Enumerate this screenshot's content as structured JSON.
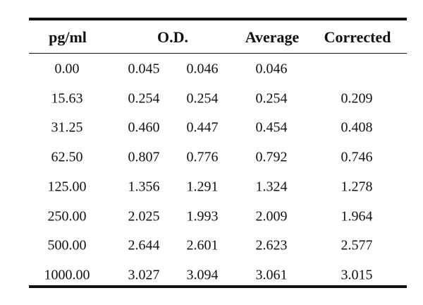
{
  "headers": {
    "conc": "pg/ml",
    "od": "O.D.",
    "average": "Average",
    "corrected": "Corrected"
  },
  "rows": [
    {
      "conc": "0.00",
      "od1": "0.045",
      "od2": "0.046",
      "average": "0.046",
      "corrected": ""
    },
    {
      "conc": "15.63",
      "od1": "0.254",
      "od2": "0.254",
      "average": "0.254",
      "corrected": "0.209"
    },
    {
      "conc": "31.25",
      "od1": "0.460",
      "od2": "0.447",
      "average": "0.454",
      "corrected": "0.408"
    },
    {
      "conc": "62.50",
      "od1": "0.807",
      "od2": "0.776",
      "average": "0.792",
      "corrected": "0.746"
    },
    {
      "conc": "125.00",
      "od1": "1.356",
      "od2": "1.291",
      "average": "1.324",
      "corrected": "1.278"
    },
    {
      "conc": "250.00",
      "od1": "2.025",
      "od2": "1.993",
      "average": "2.009",
      "corrected": "1.964"
    },
    {
      "conc": "500.00",
      "od1": "2.644",
      "od2": "2.601",
      "average": "2.623",
      "corrected": "2.577"
    },
    {
      "conc": "1000.00",
      "od1": "3.027",
      "od2": "3.094",
      "average": "3.061",
      "corrected": "3.015"
    }
  ]
}
